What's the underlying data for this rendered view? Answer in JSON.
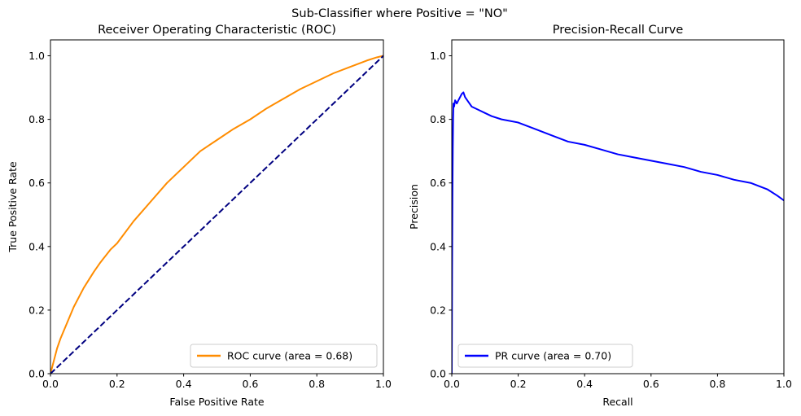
{
  "figure": {
    "suptitle": "Sub-Classifier where Positive = \"NO\""
  },
  "chart_data": [
    {
      "type": "line",
      "title": "Receiver Operating Characteristic (ROC)",
      "xlabel": "False Positive Rate",
      "ylabel": "True Positive Rate",
      "xlim": [
        0.0,
        1.0
      ],
      "ylim": [
        0.0,
        1.05
      ],
      "xticks": [
        "0.0",
        "0.2",
        "0.4",
        "0.6",
        "0.8",
        "1.0"
      ],
      "yticks": [
        "0.0",
        "0.2",
        "0.4",
        "0.6",
        "0.8",
        "1.0"
      ],
      "legend_position": "lower-right",
      "series": [
        {
          "name": "ROC curve (area = 0.68)",
          "color": "#ff8c00",
          "style": "solid",
          "x": [
            0.0,
            0.005,
            0.01,
            0.02,
            0.03,
            0.05,
            0.07,
            0.1,
            0.13,
            0.15,
            0.18,
            0.2,
            0.25,
            0.3,
            0.35,
            0.4,
            0.45,
            0.5,
            0.55,
            0.6,
            0.65,
            0.7,
            0.75,
            0.8,
            0.85,
            0.9,
            0.95,
            0.98,
            1.0
          ],
          "y": [
            0.0,
            0.02,
            0.04,
            0.08,
            0.11,
            0.16,
            0.21,
            0.27,
            0.32,
            0.35,
            0.39,
            0.41,
            0.48,
            0.54,
            0.6,
            0.65,
            0.7,
            0.735,
            0.77,
            0.8,
            0.835,
            0.865,
            0.895,
            0.92,
            0.945,
            0.965,
            0.985,
            0.995,
            1.0
          ]
        },
        {
          "name": "",
          "color": "#000080",
          "style": "dashed",
          "x": [
            0.0,
            1.0
          ],
          "y": [
            0.0,
            1.0
          ]
        }
      ]
    },
    {
      "type": "line",
      "title": "Precision-Recall Curve",
      "xlabel": "Recall",
      "ylabel": "Precision",
      "xlim": [
        0.0,
        1.0
      ],
      "ylim": [
        0.0,
        1.05
      ],
      "xticks": [
        "0.0",
        "0.2",
        "0.4",
        "0.6",
        "0.8",
        "1.0"
      ],
      "yticks": [
        "0.0",
        "0.2",
        "0.4",
        "0.6",
        "0.8",
        "1.0"
      ],
      "legend_position": "lower-left",
      "series": [
        {
          "name": "PR curve (area = 0.70)",
          "color": "#0000ff",
          "style": "solid",
          "x": [
            0.0,
            0.001,
            0.002,
            0.003,
            0.004,
            0.005,
            0.007,
            0.01,
            0.015,
            0.02,
            0.025,
            0.03,
            0.035,
            0.04,
            0.05,
            0.06,
            0.08,
            0.1,
            0.12,
            0.15,
            0.2,
            0.25,
            0.3,
            0.35,
            0.4,
            0.45,
            0.5,
            0.55,
            0.6,
            0.65,
            0.7,
            0.75,
            0.8,
            0.85,
            0.9,
            0.95,
            0.98,
            1.0
          ],
          "y": [
            0.0,
            0.33,
            0.55,
            0.7,
            0.8,
            0.85,
            0.84,
            0.86,
            0.85,
            0.86,
            0.87,
            0.88,
            0.885,
            0.87,
            0.855,
            0.84,
            0.83,
            0.82,
            0.81,
            0.8,
            0.79,
            0.77,
            0.75,
            0.73,
            0.72,
            0.705,
            0.69,
            0.68,
            0.67,
            0.66,
            0.65,
            0.635,
            0.625,
            0.61,
            0.6,
            0.58,
            0.56,
            0.545
          ]
        }
      ]
    }
  ]
}
